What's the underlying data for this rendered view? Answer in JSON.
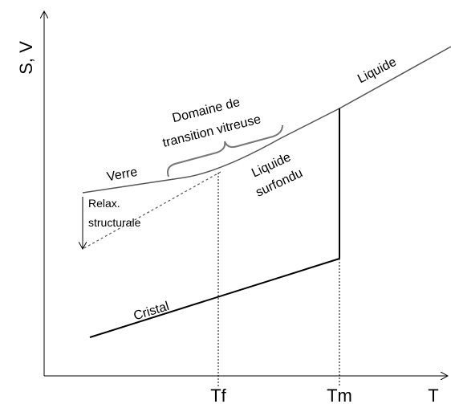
{
  "axes": {
    "y_label": "S, V",
    "x_label": "T",
    "x_ticks": [
      "Tf",
      "Tm"
    ]
  },
  "labels": {
    "domain_line1": "Domaine de",
    "domain_line2": "transition vitreuse",
    "glass": "Verre",
    "supercooled_line1": "Liquide",
    "supercooled_line2": "surfondu",
    "liquid": "Liquide",
    "relax_line1": "Relax.",
    "relax_line2": "structurale",
    "crystal": "Cristal"
  }
}
